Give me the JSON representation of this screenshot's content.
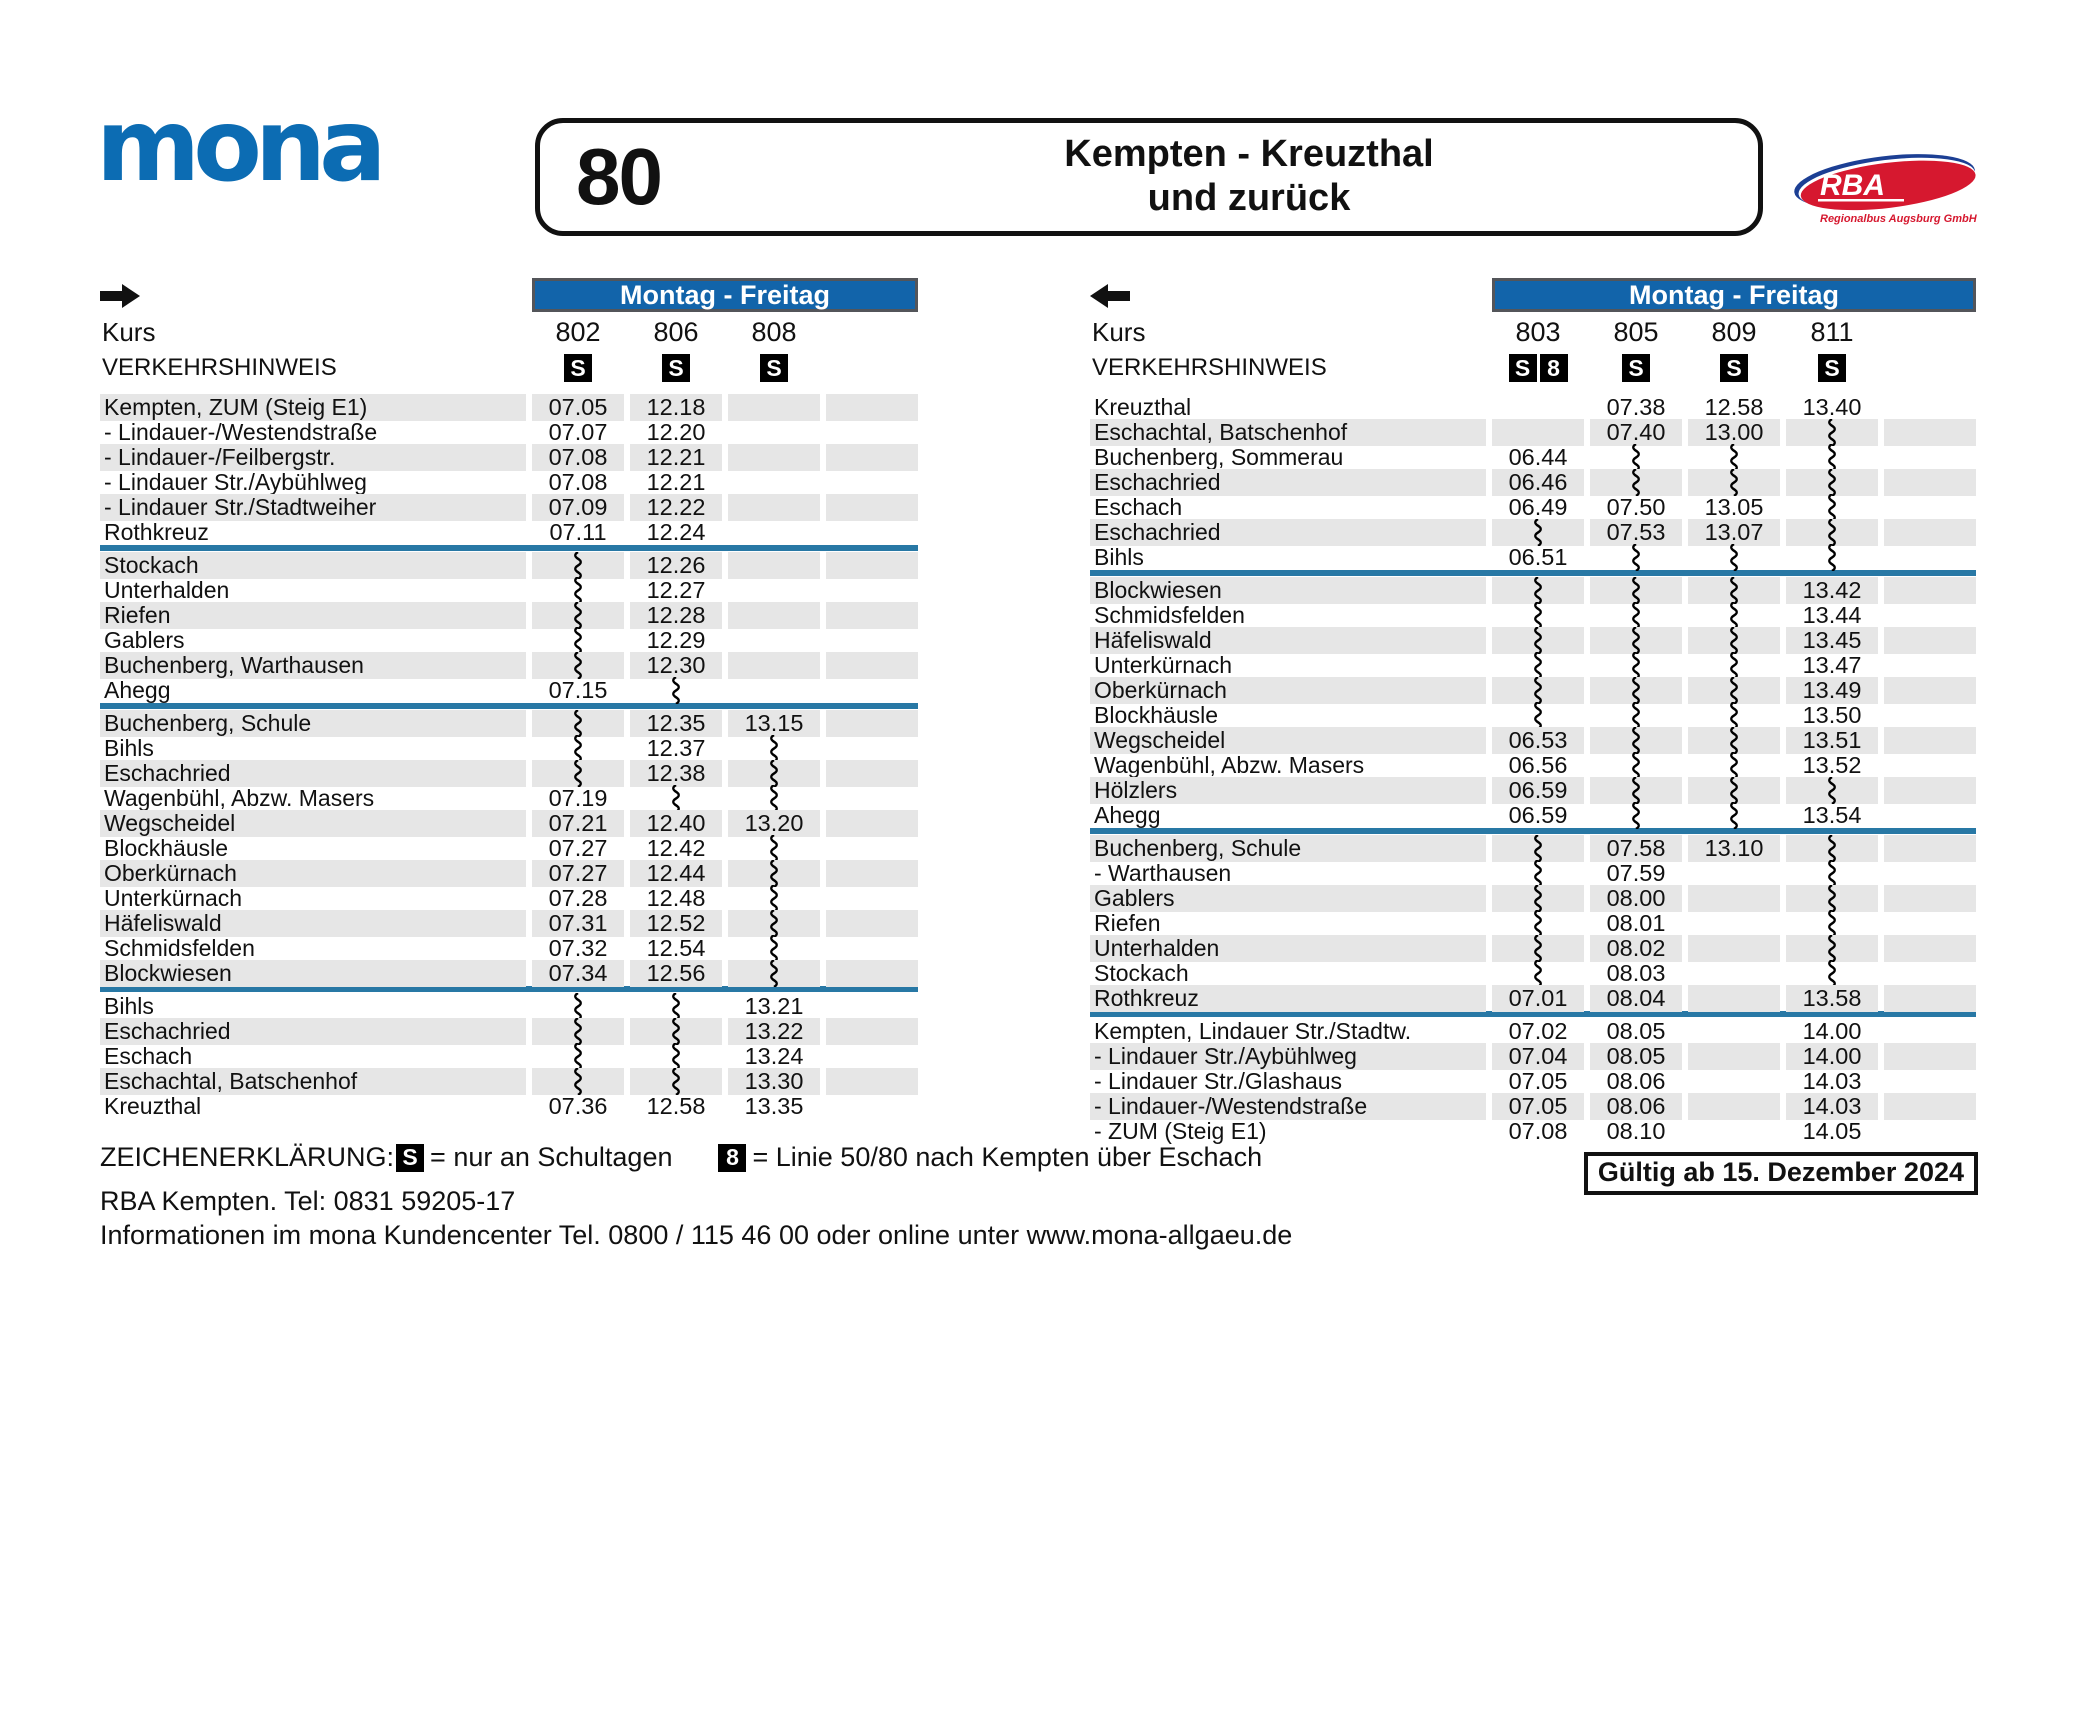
{
  "header": {
    "brand_logo": "mona",
    "line_number": "80",
    "title_line1": "Kempten - Kreuzthal",
    "title_line2": "und zurück",
    "operator": {
      "name": "RBA",
      "subtitle": "Regionalbus Augsburg GmbH"
    }
  },
  "colors": {
    "mona_blue": "#0c6cb3",
    "banner_blue": "#1264aa",
    "divider_teal": "#2878a5",
    "row_shade_gray": "#e6e6e6",
    "badge_black": "#000000",
    "rba_red": "#d6182f",
    "rba_blue": "#1c3f94"
  },
  "tables": [
    {
      "direction": "outbound",
      "day_banner": "Montag - Freitag",
      "kurs_label": "Kurs",
      "hint_label": "VERKEHRSHINWEIS",
      "first_row_shaded": true,
      "columns": [
        {
          "number": "802",
          "badges": [
            "S"
          ]
        },
        {
          "number": "806",
          "badges": [
            "S"
          ]
        },
        {
          "number": "808",
          "badges": [
            "S"
          ]
        },
        {
          "number": "",
          "badges": []
        }
      ],
      "rows": [
        {
          "stop": "Kempten, ZUM (Steig E1)",
          "times": [
            "07.05",
            "12.18",
            "",
            ""
          ]
        },
        {
          "stop": "- Lindauer-/Westendstraße",
          "times": [
            "07.07",
            "12.20",
            "",
            ""
          ]
        },
        {
          "stop": "- Lindauer-/Feilbergstr.",
          "times": [
            "07.08",
            "12.21",
            "",
            ""
          ]
        },
        {
          "stop": "- Lindauer Str./Aybühlweg",
          "times": [
            "07.08",
            "12.21",
            "",
            ""
          ]
        },
        {
          "stop": "- Lindauer Str./Stadtweiher",
          "times": [
            "07.09",
            "12.22",
            "",
            ""
          ]
        },
        {
          "stop": "Rothkreuz",
          "times": [
            "07.11",
            "12.24",
            "",
            ""
          ],
          "divider_after": true
        },
        {
          "stop": "Stockach",
          "times": [
            "~",
            "12.26",
            "",
            ""
          ]
        },
        {
          "stop": "Unterhalden",
          "times": [
            "~",
            "12.27",
            "",
            ""
          ]
        },
        {
          "stop": "Riefen",
          "times": [
            "~",
            "12.28",
            "",
            ""
          ]
        },
        {
          "stop": "Gablers",
          "times": [
            "~",
            "12.29",
            "",
            ""
          ]
        },
        {
          "stop": "Buchenberg, Warthausen",
          "times": [
            "~",
            "12.30",
            "",
            ""
          ]
        },
        {
          "stop": "Ahegg",
          "times": [
            "07.15",
            "~",
            "",
            ""
          ],
          "divider_after": true
        },
        {
          "stop": "Buchenberg, Schule",
          "times": [
            "~",
            "12.35",
            "13.15",
            ""
          ]
        },
        {
          "stop": "Bihls",
          "times": [
            "~",
            "12.37",
            "~",
            ""
          ]
        },
        {
          "stop": "Eschachried",
          "times": [
            "~",
            "12.38",
            "~",
            ""
          ]
        },
        {
          "stop": "Wagenbühl, Abzw. Masers",
          "times": [
            "07.19",
            "~",
            "~",
            ""
          ]
        },
        {
          "stop": "Wegscheidel",
          "times": [
            "07.21",
            "12.40",
            "13.20",
            ""
          ]
        },
        {
          "stop": "Blockhäusle",
          "times": [
            "07.27",
            "12.42",
            "~",
            ""
          ]
        },
        {
          "stop": "Oberkürnach",
          "times": [
            "07.27",
            "12.44",
            "~",
            ""
          ]
        },
        {
          "stop": "Unterkürnach",
          "times": [
            "07.28",
            "12.48",
            "~",
            ""
          ]
        },
        {
          "stop": "Häfeliswald",
          "times": [
            "07.31",
            "12.52",
            "~",
            ""
          ]
        },
        {
          "stop": "Schmidsfelden",
          "times": [
            "07.32",
            "12.54",
            "~",
            ""
          ]
        },
        {
          "stop": "Blockwiesen",
          "times": [
            "07.34",
            "12.56",
            "~",
            ""
          ],
          "divider_after": true
        },
        {
          "stop": "Bihls",
          "times": [
            "~",
            "~",
            "13.21",
            ""
          ]
        },
        {
          "stop": "Eschachried",
          "times": [
            "~",
            "~",
            "13.22",
            ""
          ]
        },
        {
          "stop": "Eschach",
          "times": [
            "~",
            "~",
            "13.24",
            ""
          ]
        },
        {
          "stop": "Eschachtal, Batschenhof",
          "times": [
            "~",
            "~",
            "13.30",
            ""
          ]
        },
        {
          "stop": "Kreuzthal",
          "times": [
            "07.36",
            "12.58",
            "13.35",
            ""
          ]
        }
      ]
    },
    {
      "direction": "return",
      "day_banner": "Montag - Freitag",
      "kurs_label": "Kurs",
      "hint_label": "VERKEHRSHINWEIS",
      "first_row_shaded": false,
      "columns": [
        {
          "number": "803",
          "badges": [
            "S",
            "8"
          ]
        },
        {
          "number": "805",
          "badges": [
            "S"
          ]
        },
        {
          "number": "809",
          "badges": [
            "S"
          ]
        },
        {
          "number": "811",
          "badges": [
            "S"
          ]
        },
        {
          "number": "",
          "badges": []
        }
      ],
      "rows": [
        {
          "stop": "Kreuzthal",
          "times": [
            "",
            "07.38",
            "12.58",
            "13.40",
            ""
          ]
        },
        {
          "stop": "Eschachtal, Batschenhof",
          "times": [
            "",
            "07.40",
            "13.00",
            "~",
            ""
          ]
        },
        {
          "stop": "Buchenberg, Sommerau",
          "times": [
            "06.44",
            "~",
            "~",
            "~",
            ""
          ]
        },
        {
          "stop": "Eschachried",
          "times": [
            "06.46",
            "~",
            "~",
            "~",
            ""
          ]
        },
        {
          "stop": "Eschach",
          "times": [
            "06.49",
            "07.50",
            "13.05",
            "~",
            ""
          ]
        },
        {
          "stop": "Eschachried",
          "times": [
            "~",
            "07.53",
            "13.07",
            "~",
            ""
          ]
        },
        {
          "stop": "Bihls",
          "times": [
            "06.51",
            "~",
            "~",
            "~",
            ""
          ],
          "divider_after": true
        },
        {
          "stop": "Blockwiesen",
          "times": [
            "~",
            "~",
            "~",
            "13.42",
            ""
          ]
        },
        {
          "stop": "Schmidsfelden",
          "times": [
            "~",
            "~",
            "~",
            "13.44",
            ""
          ]
        },
        {
          "stop": "Häfeliswald",
          "times": [
            "~",
            "~",
            "~",
            "13.45",
            ""
          ]
        },
        {
          "stop": "Unterkürnach",
          "times": [
            "~",
            "~",
            "~",
            "13.47",
            ""
          ]
        },
        {
          "stop": "Oberkürnach",
          "times": [
            "~",
            "~",
            "~",
            "13.49",
            ""
          ]
        },
        {
          "stop": "Blockhäusle",
          "times": [
            "~",
            "~",
            "~",
            "13.50",
            ""
          ]
        },
        {
          "stop": "Wegscheidel",
          "times": [
            "06.53",
            "~",
            "~",
            "13.51",
            ""
          ]
        },
        {
          "stop": "Wagenbühl, Abzw. Masers",
          "times": [
            "06.56",
            "~",
            "~",
            "13.52",
            ""
          ]
        },
        {
          "stop": "Hölzlers",
          "times": [
            "06.59",
            "~",
            "~",
            "~",
            ""
          ]
        },
        {
          "stop": "Ahegg",
          "times": [
            "06.59",
            "~",
            "~",
            "13.54",
            ""
          ],
          "divider_after": true
        },
        {
          "stop": "Buchenberg, Schule",
          "times": [
            "~",
            "07.58",
            "13.10",
            "~",
            ""
          ]
        },
        {
          "stop": "- Warthausen",
          "times": [
            "~",
            "07.59",
            "",
            "~",
            ""
          ]
        },
        {
          "stop": "Gablers",
          "times": [
            "~",
            "08.00",
            "",
            "~",
            ""
          ]
        },
        {
          "stop": "Riefen",
          "times": [
            "~",
            "08.01",
            "",
            "~",
            ""
          ]
        },
        {
          "stop": "Unterhalden",
          "times": [
            "~",
            "08.02",
            "",
            "~",
            ""
          ]
        },
        {
          "stop": "Stockach",
          "times": [
            "~",
            "08.03",
            "",
            "~",
            ""
          ]
        },
        {
          "stop": "Rothkreuz",
          "times": [
            "07.01",
            "08.04",
            "",
            "13.58",
            ""
          ],
          "divider_after": true
        },
        {
          "stop": "Kempten, Lindauer Str./Stadtw.",
          "times": [
            "07.02",
            "08.05",
            "",
            "14.00",
            ""
          ]
        },
        {
          "stop": "- Lindauer Str./Aybühlweg",
          "times": [
            "07.04",
            "08.05",
            "",
            "14.00",
            ""
          ]
        },
        {
          "stop": "- Lindauer Str./Glashaus",
          "times": [
            "07.05",
            "08.06",
            "",
            "14.03",
            ""
          ]
        },
        {
          "stop": "- Lindauer-/Westendstraße",
          "times": [
            "07.05",
            "08.06",
            "",
            "14.03",
            ""
          ]
        },
        {
          "stop": "- ZUM (Steig E1)",
          "times": [
            "07.08",
            "08.10",
            "",
            "14.05",
            ""
          ]
        }
      ]
    }
  ],
  "legend": {
    "title": "ZEICHENERKLÄRUNG:",
    "items": [
      {
        "badge": "S",
        "text": "= nur an Schultagen"
      },
      {
        "badge": "8",
        "text": "= Linie 50/80 nach Kempten über Eschach"
      }
    ]
  },
  "validity": "Gültig ab 15. Dezember 2024",
  "footer": {
    "line1": "RBA Kempten. Tel:  0831 59205-17",
    "line2": "Informationen im mona Kundencenter Tel. 0800 / 115 46 00 oder online unter www.mona-allgaeu.de"
  }
}
